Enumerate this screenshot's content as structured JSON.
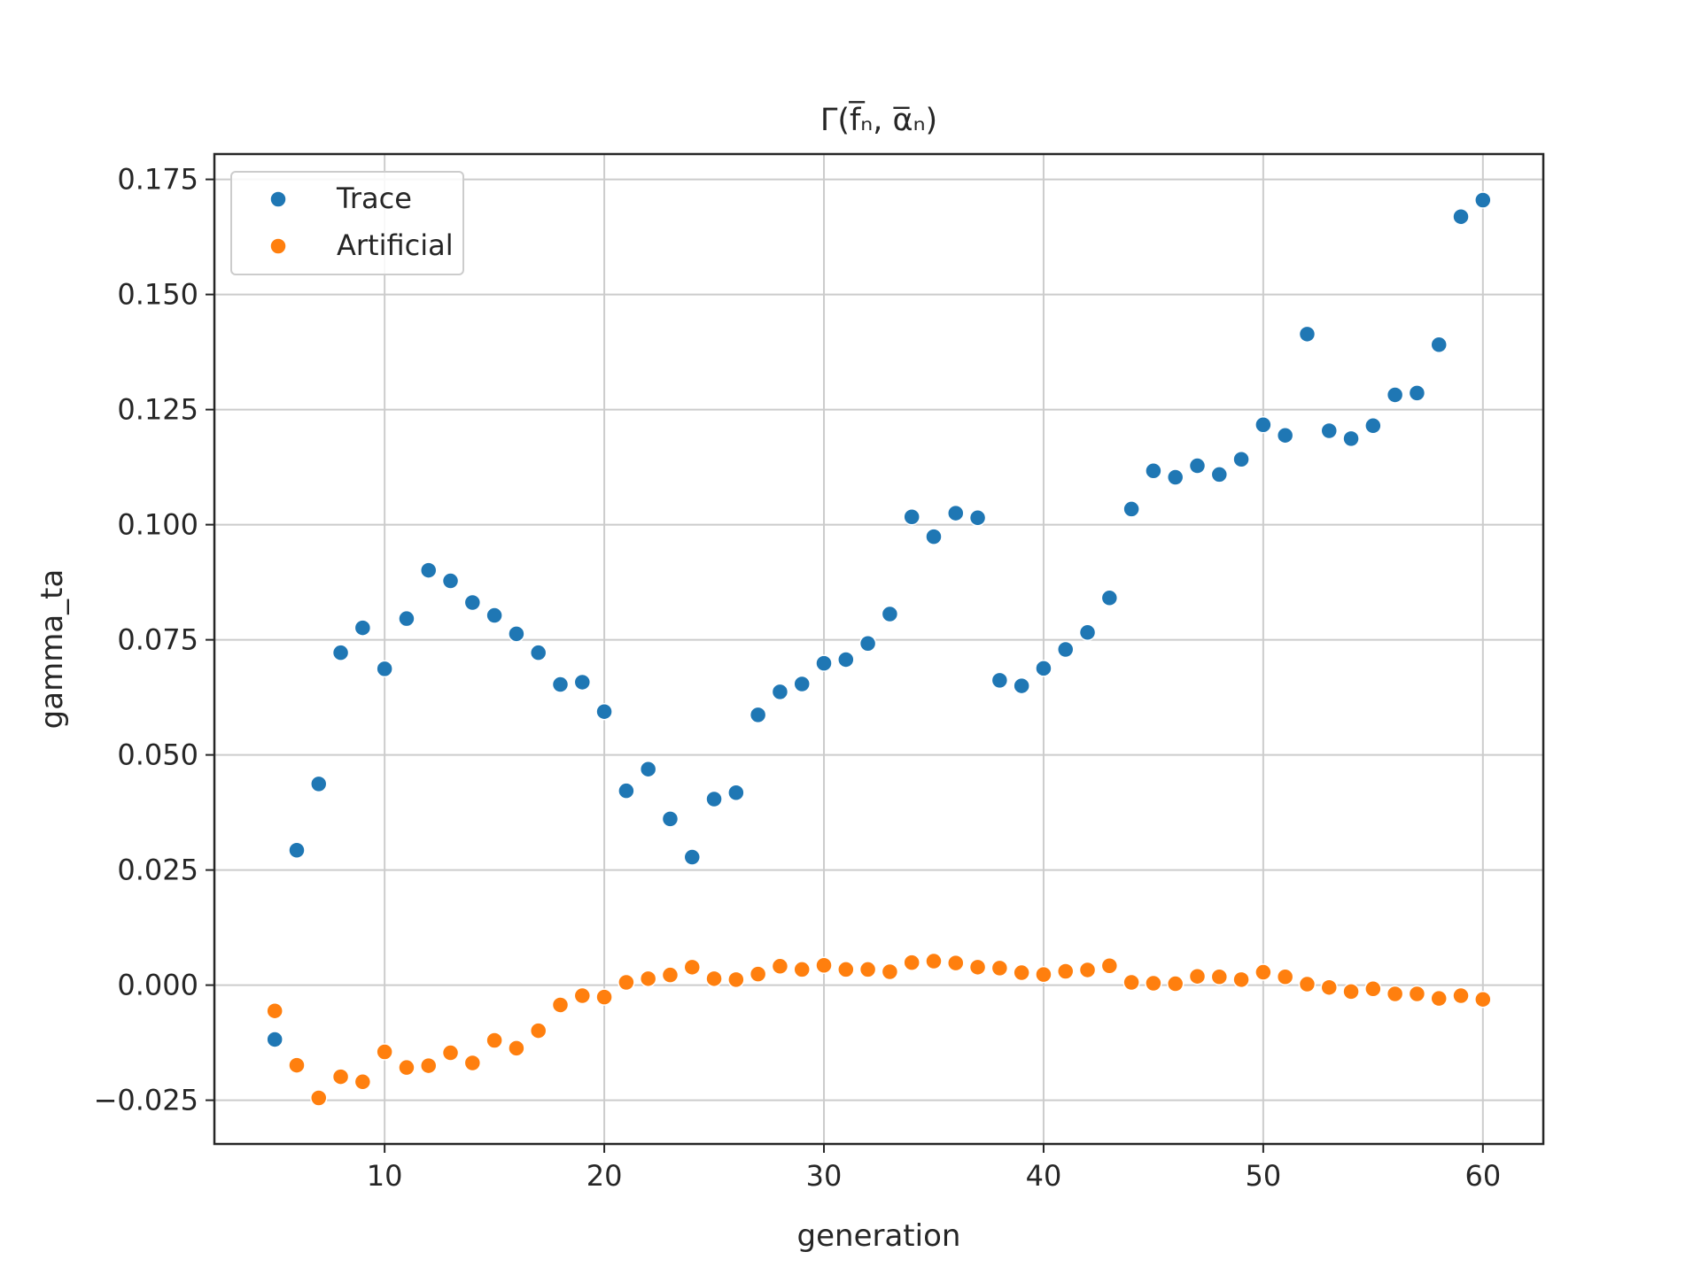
{
  "chart_data": {
    "type": "scatter",
    "title": "Γ(f̅ₙ, α̅ₙ)",
    "xlabel": "generation",
    "ylabel": "gamma_ta",
    "xlim": [
      2.25,
      62.75
    ],
    "ylim": [
      -0.0345,
      0.1805
    ],
    "x_ticks": [
      10,
      20,
      30,
      40,
      50,
      60
    ],
    "x_tick_labels": [
      "10",
      "20",
      "30",
      "40",
      "50",
      "60"
    ],
    "y_ticks": [
      -0.025,
      0.0,
      0.025,
      0.05,
      0.075,
      0.1,
      0.125,
      0.15,
      0.175
    ],
    "y_tick_labels": [
      "−0.025",
      "0.000",
      "0.025",
      "0.050",
      "0.075",
      "0.100",
      "0.125",
      "0.150",
      "0.175"
    ],
    "grid": true,
    "legend_position": "upper-left",
    "x": [
      5,
      6,
      7,
      8,
      9,
      10,
      11,
      12,
      13,
      14,
      15,
      16,
      17,
      18,
      19,
      20,
      21,
      22,
      23,
      24,
      25,
      26,
      27,
      28,
      29,
      30,
      31,
      32,
      33,
      34,
      35,
      36,
      37,
      38,
      39,
      40,
      41,
      42,
      43,
      44,
      45,
      46,
      47,
      48,
      49,
      50,
      51,
      52,
      53,
      54,
      55,
      56,
      57,
      58,
      59,
      60
    ],
    "series": [
      {
        "name": "Trace",
        "color": "#1f77b4",
        "values": [
          -0.0118,
          0.0293,
          0.0437,
          0.0722,
          0.0776,
          0.0687,
          0.0796,
          0.0901,
          0.0878,
          0.0831,
          0.0803,
          0.0763,
          0.0722,
          0.0653,
          0.0658,
          0.0594,
          0.0422,
          0.0469,
          0.0361,
          0.0278,
          0.0404,
          0.0418,
          0.0587,
          0.0637,
          0.0654,
          0.0699,
          0.0707,
          0.0742,
          0.0806,
          0.1017,
          0.0974,
          0.1025,
          0.1015,
          0.0662,
          0.065,
          0.0688,
          0.0729,
          0.0766,
          0.0841,
          0.1034,
          0.1117,
          0.1103,
          0.1128,
          0.1109,
          0.1142,
          0.1217,
          0.1194,
          0.1414,
          0.1204,
          0.1187,
          0.1215,
          0.1282,
          0.1286,
          0.1391,
          0.1669,
          0.1705
        ]
      },
      {
        "name": "Artificial",
        "color": "#ff7f0e",
        "values": [
          -0.0056,
          -0.0174,
          -0.0245,
          -0.0199,
          -0.021,
          -0.0145,
          -0.0179,
          -0.0175,
          -0.0147,
          -0.0169,
          -0.012,
          -0.0137,
          -0.0099,
          -0.0043,
          -0.0023,
          -0.0026,
          0.0006,
          0.0014,
          0.0022,
          0.0039,
          0.0014,
          0.0012,
          0.0024,
          0.0041,
          0.0034,
          0.0043,
          0.0034,
          0.0034,
          0.0029,
          0.0049,
          0.0052,
          0.0048,
          0.0039,
          0.0037,
          0.0027,
          0.0023,
          0.003,
          0.0033,
          0.0042,
          0.0006,
          0.0004,
          0.0003,
          0.0019,
          0.0018,
          0.0012,
          0.0028,
          0.0018,
          0.0002,
          -0.0005,
          -0.0014,
          -0.0008,
          -0.0019,
          -0.0019,
          -0.0029,
          -0.0023,
          -0.0031
        ]
      }
    ]
  }
}
